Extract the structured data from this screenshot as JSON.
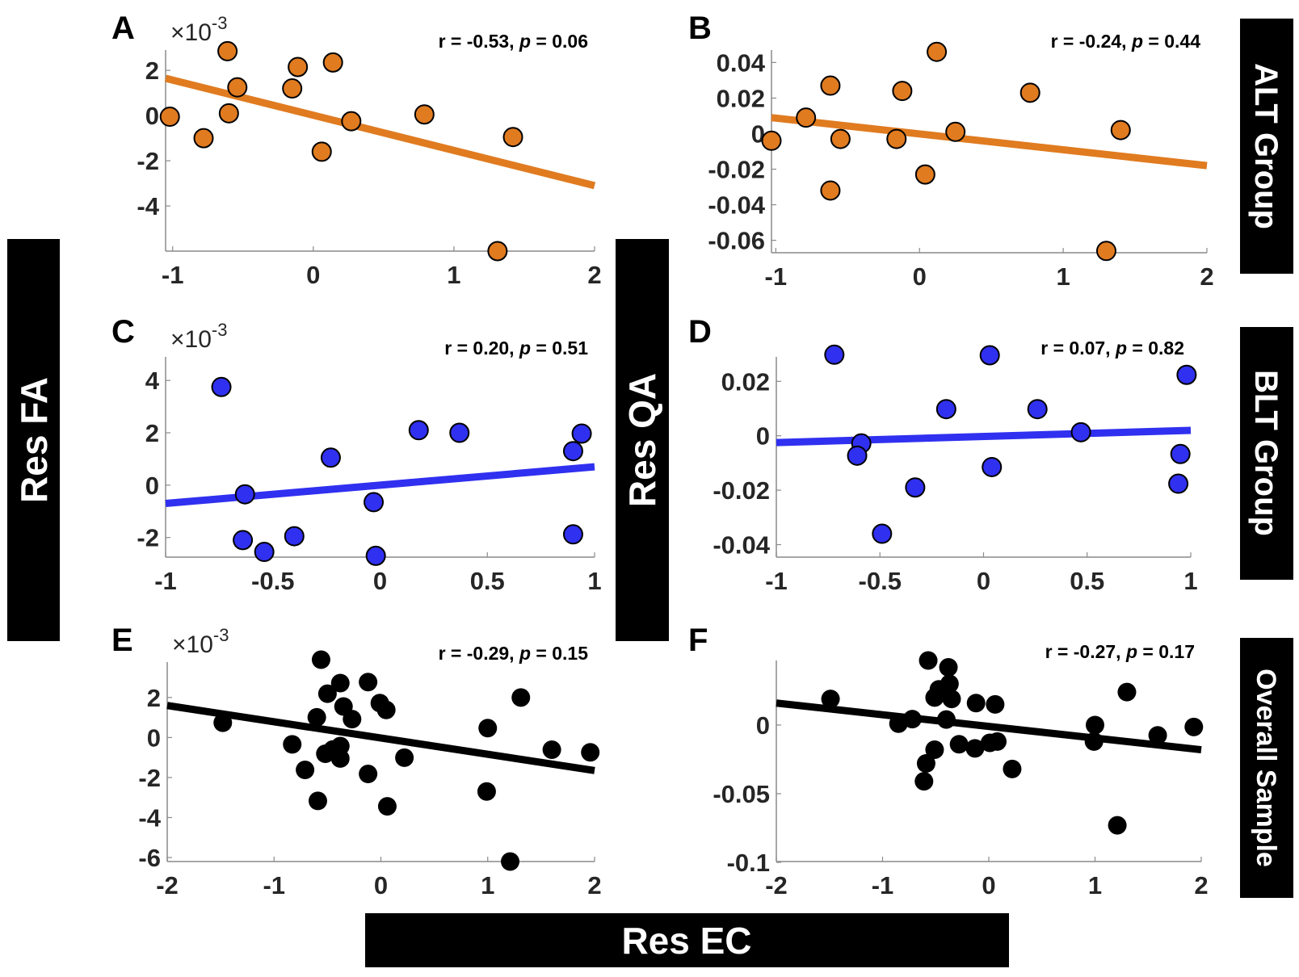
{
  "figure": {
    "ylabel_left": "Res FA",
    "ylabel_middle": "Res QA",
    "xlabel_bottom": "Res EC",
    "row_labels": [
      "ALT Group",
      "BLT Group",
      "Overall Sample"
    ],
    "colors": {
      "alt": "#e07b20",
      "blt": "#3030f0",
      "overall": "#000000",
      "marker_edge": "#000000",
      "axis": "#8a8a8a"
    }
  },
  "chart_data": [
    {
      "id": "A",
      "type": "scatter",
      "letter": "A",
      "group": "ALT Group",
      "ylabel": "Res FA",
      "xlabel": "Res EC",
      "exponent": "-3",
      "exponent_prefix": "×10",
      "stat_text": "r = -0.53, p = 0.06",
      "r": -0.53,
      "p": 0.06,
      "color": "#e07b20",
      "marker_edge": true,
      "xlim": [
        -1.05,
        2
      ],
      "ylim": [
        -6.0,
        2.9
      ],
      "xticks": [
        -1,
        0,
        1,
        2
      ],
      "xtick_labels": [
        "-1",
        "0",
        "1",
        "2"
      ],
      "yticks": [
        2,
        0,
        -2,
        -4
      ],
      "ytick_labels": [
        "2",
        "0",
        "-2",
        "-4"
      ],
      "points": [
        [
          -1.02,
          -0.05
        ],
        [
          -0.78,
          -1.0
        ],
        [
          -0.61,
          2.85
        ],
        [
          -0.6,
          0.1
        ],
        [
          -0.54,
          1.25
        ],
        [
          -0.15,
          1.2
        ],
        [
          -0.11,
          2.15
        ],
        [
          0.06,
          -1.6
        ],
        [
          0.14,
          2.35
        ],
        [
          0.27,
          -0.25
        ],
        [
          0.79,
          0.05
        ],
        [
          1.42,
          -0.95
        ],
        [
          1.31,
          -6.0
        ]
      ],
      "fit": [
        [
          -1.05,
          1.65
        ],
        [
          2,
          -3.1
        ]
      ]
    },
    {
      "id": "B",
      "type": "scatter",
      "letter": "B",
      "group": "ALT Group",
      "ylabel": "Res QA",
      "xlabel": "Res EC",
      "stat_text": "r = -0.24, p = 0.44",
      "r": -0.24,
      "p": 0.44,
      "color": "#e07b20",
      "marker_edge": true,
      "xlim": [
        -1.03,
        2
      ],
      "ylim": [
        -0.067,
        0.047
      ],
      "xticks": [
        -1,
        0,
        1,
        2
      ],
      "xtick_labels": [
        "-1",
        "0",
        "1",
        "2"
      ],
      "yticks": [
        0.04,
        0.02,
        0,
        -0.02,
        -0.04,
        -0.06
      ],
      "ytick_labels": [
        "0.04",
        "0.02",
        "0",
        "-0.02",
        "-0.04",
        "-0.06"
      ],
      "points": [
        [
          -1.03,
          -0.004
        ],
        [
          -0.79,
          0.009
        ],
        [
          -0.62,
          0.027
        ],
        [
          -0.55,
          -0.003
        ],
        [
          -0.62,
          -0.032
        ],
        [
          -0.16,
          -0.003
        ],
        [
          -0.12,
          0.024
        ],
        [
          0.04,
          -0.023
        ],
        [
          0.12,
          0.046
        ],
        [
          0.25,
          0.001
        ],
        [
          0.77,
          0.023
        ],
        [
          1.4,
          0.002
        ],
        [
          1.3,
          -0.066
        ]
      ],
      "fit": [
        [
          -1.03,
          0.009
        ],
        [
          2,
          -0.018
        ]
      ]
    },
    {
      "id": "C",
      "type": "scatter",
      "letter": "C",
      "group": "BLT Group",
      "ylabel": "Res FA",
      "xlabel": "Res EC",
      "exponent": "-3",
      "exponent_prefix": "×10",
      "stat_text": "r = 0.20, p = 0.51",
      "r": 0.2,
      "p": 0.51,
      "color": "#3030f0",
      "marker_edge": true,
      "xlim": [
        -1,
        1
      ],
      "ylim": [
        -2.75,
        4.9
      ],
      "xticks": [
        -1,
        -0.5,
        0,
        0.5,
        1
      ],
      "xtick_labels": [
        "-1",
        "-0.5",
        "0",
        "0.5",
        "1"
      ],
      "yticks": [
        4,
        2,
        0,
        -2
      ],
      "ytick_labels": [
        "4",
        "2",
        "0",
        "-2"
      ],
      "points": [
        [
          -0.74,
          3.75
        ],
        [
          -0.63,
          -0.35
        ],
        [
          -0.64,
          -2.1
        ],
        [
          -0.54,
          -2.55
        ],
        [
          -0.4,
          -1.95
        ],
        [
          -0.23,
          1.05
        ],
        [
          -0.03,
          -0.65
        ],
        [
          -0.02,
          -2.7
        ],
        [
          0.18,
          2.1
        ],
        [
          0.37,
          2.0
        ],
        [
          0.9,
          1.3
        ],
        [
          0.94,
          1.97
        ],
        [
          0.9,
          -1.88
        ]
      ],
      "fit": [
        [
          -1,
          -0.7
        ],
        [
          1,
          0.7
        ]
      ]
    },
    {
      "id": "D",
      "type": "scatter",
      "letter": "D",
      "group": "BLT Group",
      "ylabel": "Res QA",
      "xlabel": "Res EC",
      "stat_text": "r = 0.07, p = 0.82",
      "r": 0.07,
      "p": 0.82,
      "color": "#3030f0",
      "marker_edge": true,
      "xlim": [
        -1,
        1
      ],
      "ylim": [
        -0.0446,
        0.029
      ],
      "xticks": [
        -1,
        -0.5,
        0,
        0.5,
        1
      ],
      "xtick_labels": [
        "-1",
        "-0.5",
        "0",
        "0.5",
        "1"
      ],
      "yticks": [
        0.02,
        0,
        -0.02,
        -0.04
      ],
      "ytick_labels": [
        "0.02",
        "0",
        "-0.02",
        "-0.04"
      ],
      "points": [
        [
          -0.72,
          0.0298
        ],
        [
          -0.59,
          -0.0028
        ],
        [
          -0.61,
          -0.0073
        ],
        [
          -0.49,
          -0.036
        ],
        [
          -0.33,
          -0.019
        ],
        [
          -0.18,
          0.0098
        ],
        [
          0.03,
          0.0296
        ],
        [
          0.04,
          -0.0115
        ],
        [
          0.26,
          0.0098
        ],
        [
          0.47,
          0.0013
        ],
        [
          0.98,
          0.0224
        ],
        [
          0.95,
          -0.0067
        ],
        [
          0.94,
          -0.0176
        ]
      ],
      "fit": [
        [
          -1,
          -0.0025
        ],
        [
          1,
          0.002
        ]
      ]
    },
    {
      "id": "E",
      "type": "scatter",
      "letter": "E",
      "group": "Overall Sample",
      "ylabel": "Res FA",
      "xlabel": "Res EC",
      "exponent": "-3",
      "exponent_prefix": "×10",
      "stat_text": "r = -0.29, p = 0.15",
      "r": -0.29,
      "p": 0.15,
      "color": "#000000",
      "marker_edge": false,
      "xlim": [
        -2,
        2
      ],
      "ylim": [
        -6.2,
        3.77
      ],
      "xticks": [
        -2,
        -1,
        0,
        1,
        2
      ],
      "xtick_labels": [
        "-2",
        "-1",
        "0",
        "1",
        "2"
      ],
      "yticks": [
        2,
        0,
        -2,
        -4,
        -6
      ],
      "ytick_labels": [
        "2",
        "0",
        "-2",
        "-4",
        "-6"
      ],
      "points": [
        [
          -1.48,
          0.74
        ],
        [
          -0.83,
          -0.34
        ],
        [
          -0.71,
          -1.62
        ],
        [
          -0.59,
          -3.17
        ],
        [
          -0.6,
          1.01
        ],
        [
          -0.56,
          3.89
        ],
        [
          -0.5,
          2.19
        ],
        [
          -0.52,
          -0.81
        ],
        [
          -0.38,
          2.72
        ],
        [
          -0.35,
          1.55
        ],
        [
          -0.27,
          0.92
        ],
        [
          -0.38,
          -0.43
        ],
        [
          -0.38,
          -1.05
        ],
        [
          -0.45,
          -0.6
        ],
        [
          -0.12,
          2.77
        ],
        [
          -0.12,
          -1.82
        ],
        [
          -0.01,
          1.72
        ],
        [
          0.05,
          1.38
        ],
        [
          0.22,
          -1.01
        ],
        [
          0.06,
          -3.44
        ],
        [
          1.0,
          0.47
        ],
        [
          0.99,
          -2.7
        ],
        [
          1.31,
          2.0
        ],
        [
          1.6,
          -0.61
        ],
        [
          1.96,
          -0.74
        ],
        [
          1.21,
          -6.2
        ]
      ],
      "fit": [
        [
          -2,
          1.6
        ],
        [
          2,
          -1.65
        ]
      ]
    },
    {
      "id": "F",
      "type": "scatter",
      "letter": "F",
      "group": "Overall Sample",
      "ylabel": "Res QA",
      "xlabel": "Res EC",
      "stat_text": "r = -0.27, p = 0.17",
      "r": -0.27,
      "p": 0.17,
      "color": "#000000",
      "marker_edge": false,
      "xlim": [
        -2,
        2
      ],
      "ylim": [
        -0.0994,
        0.047
      ],
      "xticks": [
        -2,
        -1,
        0,
        1,
        2
      ],
      "xtick_labels": [
        "-2",
        "-1",
        "0",
        "1",
        "2"
      ],
      "yticks": [
        0,
        -0.05,
        -0.1
      ],
      "ytick_labels": [
        "0",
        "-0.05",
        "-0.1"
      ],
      "points": [
        [
          -1.49,
          0.019
        ],
        [
          -0.85,
          0.001
        ],
        [
          -0.72,
          0.0043
        ],
        [
          -0.57,
          0.047
        ],
        [
          -0.38,
          0.042
        ],
        [
          -0.37,
          0.03
        ],
        [
          -0.51,
          0.02
        ],
        [
          -0.47,
          0.026
        ],
        [
          -0.35,
          0.019
        ],
        [
          -0.4,
          0.004
        ],
        [
          -0.51,
          -0.018
        ],
        [
          -0.59,
          -0.028
        ],
        [
          -0.61,
          -0.041
        ],
        [
          -0.28,
          -0.014
        ],
        [
          -0.12,
          0.016
        ],
        [
          0.06,
          0.015
        ],
        [
          -0.13,
          -0.017
        ],
        [
          0.01,
          -0.013
        ],
        [
          0.08,
          -0.012
        ],
        [
          0.22,
          -0.032
        ],
        [
          1.0,
          0.0
        ],
        [
          0.99,
          -0.012
        ],
        [
          1.3,
          0.024
        ],
        [
          1.59,
          -0.0075
        ],
        [
          1.93,
          -0.0014
        ],
        [
          1.21,
          -0.073
        ]
      ],
      "fit": [
        [
          -2,
          0.016
        ],
        [
          2,
          -0.018
        ]
      ]
    }
  ]
}
